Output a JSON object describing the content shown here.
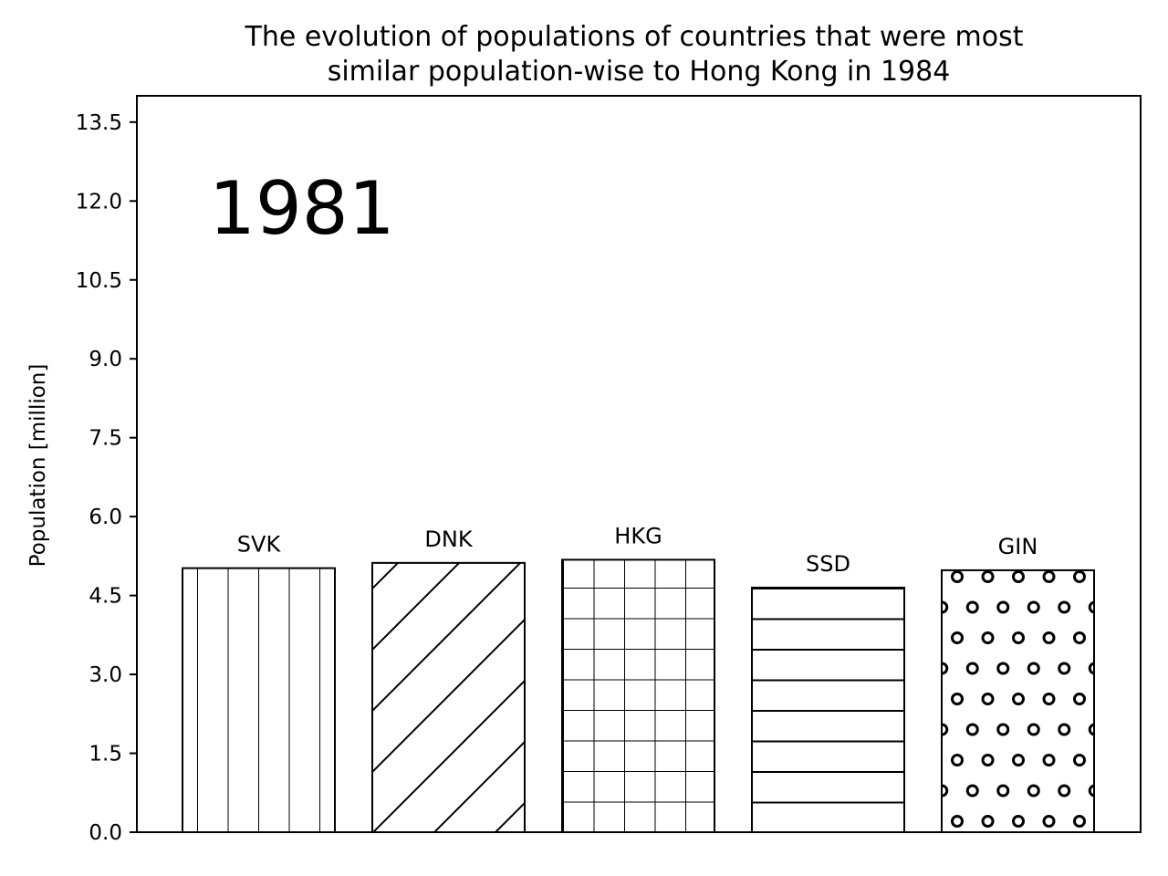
{
  "chart_data": {
    "type": "bar",
    "title": "The evolution of populations of countries that were most similar population-wise to Hong Kong in 1984",
    "title_lines": [
      "The evolution of populations of countries that were most",
      "similar population-wise to Hong Kong in 1984"
    ],
    "annotation": "1981",
    "xlabel": "",
    "ylabel": "Population [million]",
    "ylim": [
      0,
      14
    ],
    "yticks": [
      0,
      1.5,
      3,
      4.5,
      6,
      7.5,
      9,
      10.5,
      12,
      13.5
    ],
    "ytick_labels": [
      "0.0",
      "1.5",
      "3.0",
      "4.5",
      "6.0",
      "7.5",
      "9.0",
      "10.5",
      "12.0",
      "13.5"
    ],
    "categories": [
      "SVK",
      "DNK",
      "HKG",
      "SSD",
      "GIN"
    ],
    "values": [
      5.02,
      5.12,
      5.18,
      4.65,
      4.98
    ],
    "hatches": [
      "vertical",
      "diagonal",
      "grid",
      "horizontal",
      "circles"
    ],
    "grid": false,
    "colors": {
      "bar_fill": "#ffffff",
      "stroke": "#000000"
    }
  }
}
